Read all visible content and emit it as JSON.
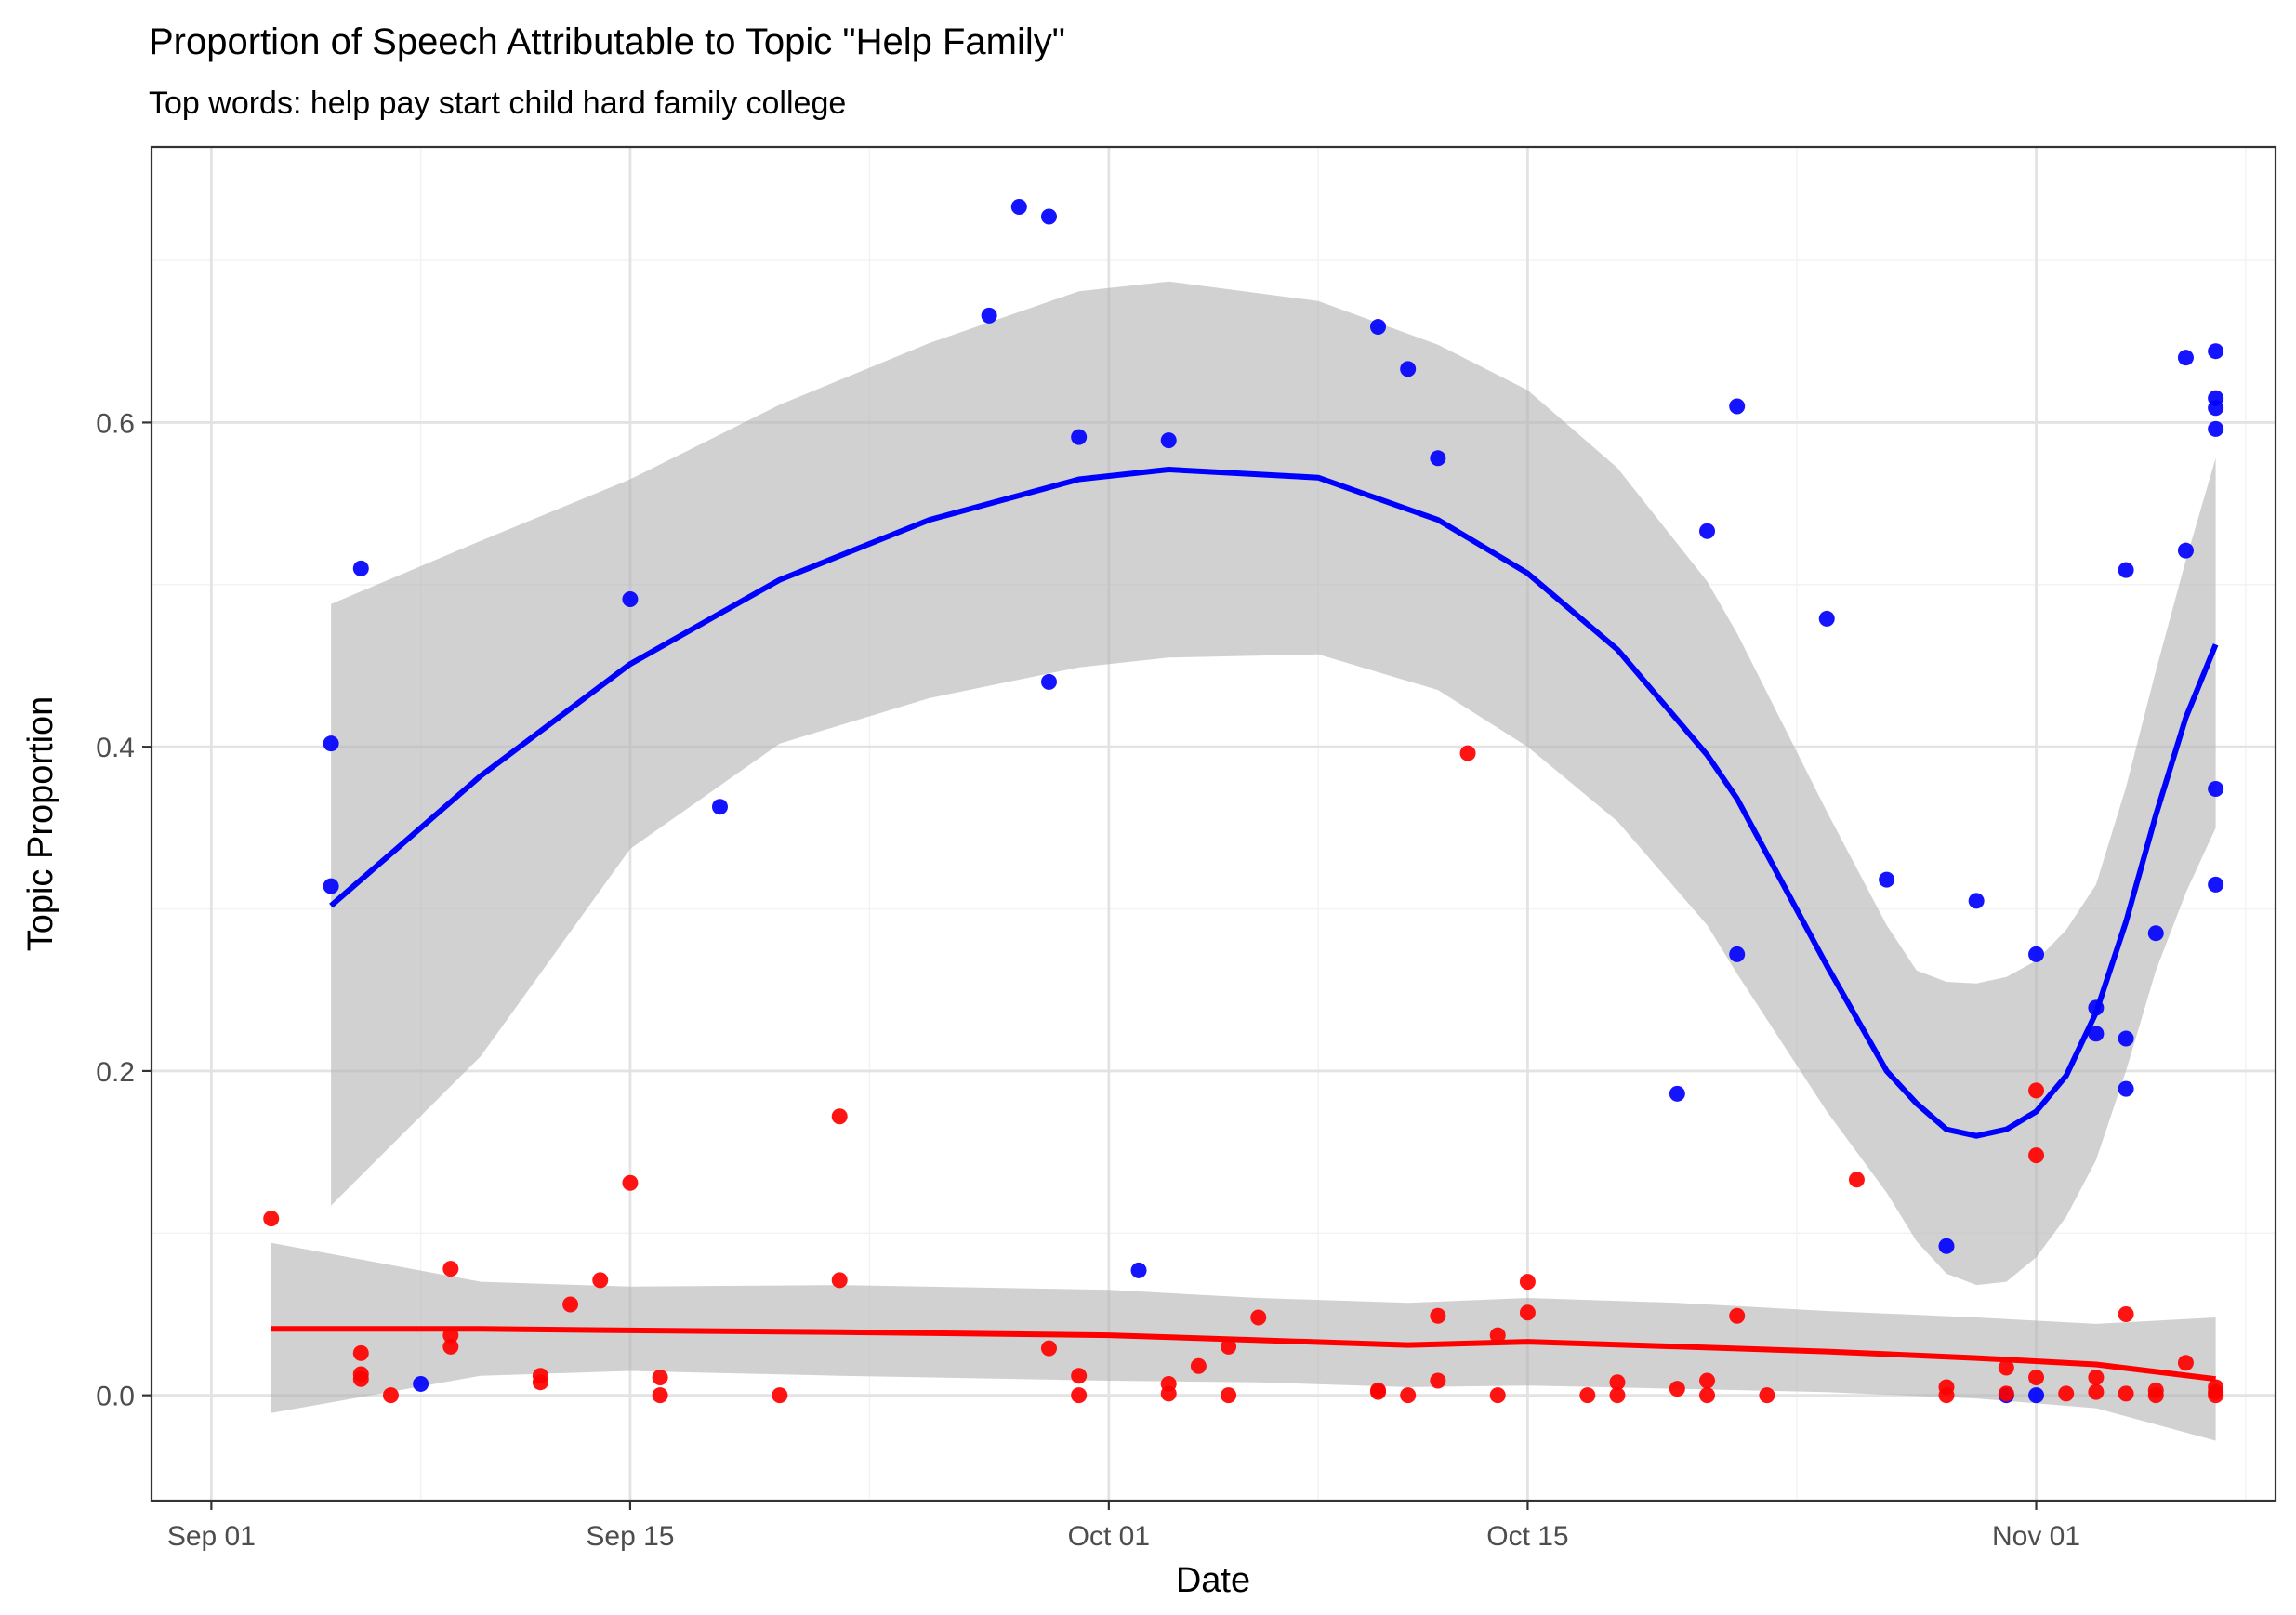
{
  "colors": {
    "series_blue": "#0000FF",
    "series_red": "#FF0000",
    "ribbon": "#B3B3B3",
    "grid_major": "#E3E3E3",
    "grid_minor": "#F2F2F2",
    "panel_border": "#333333"
  },
  "chart_data": {
    "type": "scatter",
    "title": "Proportion of Speech Attributable to Topic \"Help Family\"",
    "subtitle": "Top words: help pay start child hard family college",
    "xlabel": "Date",
    "ylabel": "Topic Proportion",
    "x_axis_type": "date",
    "xlim": [
      "2016-08-30",
      "2016-11-09"
    ],
    "ylim": [
      -0.065,
      0.77
    ],
    "x_ticks": [
      {
        "date": "2016-09-01",
        "label": "Sep 01"
      },
      {
        "date": "2016-09-15",
        "label": "Sep 15"
      },
      {
        "date": "2016-10-01",
        "label": "Oct 01"
      },
      {
        "date": "2016-10-15",
        "label": "Oct 15"
      },
      {
        "date": "2016-11-01",
        "label": "Nov 01"
      }
    ],
    "y_ticks": [
      {
        "value": 0.0,
        "label": "0.0"
      },
      {
        "value": 0.2,
        "label": "0.2"
      },
      {
        "value": 0.4,
        "label": "0.4"
      },
      {
        "value": 0.6,
        "label": "0.6"
      }
    ],
    "x_minor_ticks": [
      "2016-09-08",
      "2016-09-23",
      "2016-10-08",
      "2016-10-24",
      "2016-11-08"
    ],
    "y_minor_ticks": [
      0.1,
      0.3,
      0.5,
      0.7
    ],
    "grid": true,
    "legend": "none",
    "series": [
      {
        "color": "#0000FF",
        "points": [
          [
            "2016-09-05",
            0.402
          ],
          [
            "2016-09-05",
            0.314
          ],
          [
            "2016-09-06",
            0.51
          ],
          [
            "2016-09-08",
            0.007
          ],
          [
            "2016-09-15",
            0.491
          ],
          [
            "2016-09-18",
            0.363
          ],
          [
            "2016-09-27",
            0.666
          ],
          [
            "2016-09-28",
            0.733
          ],
          [
            "2016-09-29",
            0.727
          ],
          [
            "2016-09-29",
            0.44
          ],
          [
            "2016-09-30",
            0.591
          ],
          [
            "2016-10-02",
            0.077
          ],
          [
            "2016-10-03",
            0.589
          ],
          [
            "2016-10-10",
            0.659
          ],
          [
            "2016-10-11",
            0.633
          ],
          [
            "2016-10-12",
            0.578
          ],
          [
            "2016-10-20",
            0.186
          ],
          [
            "2016-10-21",
            0.533
          ],
          [
            "2016-10-22",
            0.61
          ],
          [
            "2016-10-22",
            0.272
          ],
          [
            "2016-10-25",
            0.479
          ],
          [
            "2016-10-27",
            0.318
          ],
          [
            "2016-10-29",
            0.092
          ],
          [
            "2016-10-30",
            0.305
          ],
          [
            "2016-10-31",
            0.0
          ],
          [
            "2016-11-01",
            0.272
          ],
          [
            "2016-11-01",
            0.0
          ],
          [
            "2016-11-03",
            0.239
          ],
          [
            "2016-11-03",
            0.223
          ],
          [
            "2016-11-04",
            0.509
          ],
          [
            "2016-11-04",
            0.22
          ],
          [
            "2016-11-04",
            0.189
          ],
          [
            "2016-11-05",
            0.285
          ],
          [
            "2016-11-06",
            0.64
          ],
          [
            "2016-11-06",
            0.521
          ],
          [
            "2016-11-07",
            0.644
          ],
          [
            "2016-11-07",
            0.615
          ],
          [
            "2016-11-07",
            0.609
          ],
          [
            "2016-11-07",
            0.596
          ],
          [
            "2016-11-07",
            0.374
          ],
          [
            "2016-11-07",
            0.315
          ]
        ],
        "smooth": [
          [
            "2016-09-05",
            0.302,
            0.117,
            0.488
          ],
          [
            "2016-09-10",
            0.382,
            0.209,
            0.527
          ],
          [
            "2016-09-15",
            0.451,
            0.337,
            0.565
          ],
          [
            "2016-09-20",
            0.503,
            0.402,
            0.611
          ],
          [
            "2016-09-25",
            0.54,
            0.43,
            0.649
          ],
          [
            "2016-09-30",
            0.565,
            0.449,
            0.681
          ],
          [
            "2016-10-03",
            0.571,
            0.455,
            0.687
          ],
          [
            "2016-10-08",
            0.566,
            0.457,
            0.675
          ],
          [
            "2016-10-12",
            0.54,
            0.435,
            0.648
          ],
          [
            "2016-10-15",
            0.507,
            0.4,
            0.62
          ],
          [
            "2016-10-18",
            0.46,
            0.354,
            0.572
          ],
          [
            "2016-10-21",
            0.395,
            0.29,
            0.502
          ],
          [
            "2016-10-22",
            0.368,
            0.26,
            0.47
          ],
          [
            "2016-10-25",
            0.265,
            0.175,
            0.36
          ],
          [
            "2016-10-27",
            0.2,
            0.125,
            0.29
          ],
          [
            "2016-10-28",
            0.18,
            0.095,
            0.262
          ],
          [
            "2016-10-29",
            0.164,
            0.075,
            0.255
          ],
          [
            "2016-10-30",
            0.16,
            0.068,
            0.254
          ],
          [
            "2016-10-31",
            0.164,
            0.07,
            0.258
          ],
          [
            "2016-11-01",
            0.175,
            0.085,
            0.268
          ],
          [
            "2016-11-02",
            0.197,
            0.11,
            0.287
          ],
          [
            "2016-11-03",
            0.236,
            0.145,
            0.315
          ],
          [
            "2016-11-04",
            0.292,
            0.2,
            0.375
          ],
          [
            "2016-11-05",
            0.358,
            0.262,
            0.447
          ],
          [
            "2016-11-06",
            0.418,
            0.31,
            0.515
          ],
          [
            "2016-11-07",
            0.463,
            0.35,
            0.578
          ]
        ]
      },
      {
        "color": "#FF0000",
        "points": [
          [
            "2016-09-03",
            0.109
          ],
          [
            "2016-09-06",
            0.026
          ],
          [
            "2016-09-06",
            0.013
          ],
          [
            "2016-09-06",
            0.01
          ],
          [
            "2016-09-07",
            0.0
          ],
          [
            "2016-09-09",
            0.078
          ],
          [
            "2016-09-09",
            0.037
          ],
          [
            "2016-09-09",
            0.03
          ],
          [
            "2016-09-12",
            0.012
          ],
          [
            "2016-09-12",
            0.008
          ],
          [
            "2016-09-13",
            0.056
          ],
          [
            "2016-09-14",
            0.071
          ],
          [
            "2016-09-15",
            0.131
          ],
          [
            "2016-09-16",
            0.011
          ],
          [
            "2016-09-16",
            0.0
          ],
          [
            "2016-09-20",
            0.0
          ],
          [
            "2016-09-22",
            0.172
          ],
          [
            "2016-09-22",
            0.071
          ],
          [
            "2016-09-29",
            0.029
          ],
          [
            "2016-09-30",
            0.012
          ],
          [
            "2016-09-30",
            0.0
          ],
          [
            "2016-10-03",
            0.007
          ],
          [
            "2016-10-03",
            0.001
          ],
          [
            "2016-10-04",
            0.018
          ],
          [
            "2016-10-05",
            0.03
          ],
          [
            "2016-10-05",
            0.0
          ],
          [
            "2016-10-06",
            0.048
          ],
          [
            "2016-10-10",
            0.003
          ],
          [
            "2016-10-10",
            0.002
          ],
          [
            "2016-10-11",
            0.0
          ],
          [
            "2016-10-12",
            0.049
          ],
          [
            "2016-10-12",
            0.009
          ],
          [
            "2016-10-13",
            0.396
          ],
          [
            "2016-10-14",
            0.037
          ],
          [
            "2016-10-14",
            0.0
          ],
          [
            "2016-10-15",
            0.07
          ],
          [
            "2016-10-15",
            0.051
          ],
          [
            "2016-10-17",
            0.0
          ],
          [
            "2016-10-18",
            0.008
          ],
          [
            "2016-10-18",
            0.0
          ],
          [
            "2016-10-20",
            0.004
          ],
          [
            "2016-10-21",
            0.009
          ],
          [
            "2016-10-21",
            0.0
          ],
          [
            "2016-10-22",
            0.049
          ],
          [
            "2016-10-23",
            0.0
          ],
          [
            "2016-10-26",
            0.133
          ],
          [
            "2016-10-29",
            0.005
          ],
          [
            "2016-10-29",
            0.0
          ],
          [
            "2016-10-31",
            0.017
          ],
          [
            "2016-10-31",
            0.001
          ],
          [
            "2016-11-01",
            0.188
          ],
          [
            "2016-11-01",
            0.148
          ],
          [
            "2016-11-01",
            0.011
          ],
          [
            "2016-11-02",
            0.001
          ],
          [
            "2016-11-03",
            0.011
          ],
          [
            "2016-11-03",
            0.002
          ],
          [
            "2016-11-04",
            0.05
          ],
          [
            "2016-11-04",
            0.001
          ],
          [
            "2016-11-05",
            0.003
          ],
          [
            "2016-11-05",
            0.0
          ],
          [
            "2016-11-06",
            0.02
          ],
          [
            "2016-11-07",
            0.005
          ],
          [
            "2016-11-07",
            0.002
          ],
          [
            "2016-11-07",
            0.0
          ]
        ],
        "smooth": [
          [
            "2016-09-03",
            0.041,
            -0.011,
            0.094
          ],
          [
            "2016-09-10",
            0.041,
            0.012,
            0.07
          ],
          [
            "2016-09-15",
            0.04,
            0.015,
            0.067
          ],
          [
            "2016-09-22",
            0.039,
            0.012,
            0.068
          ],
          [
            "2016-10-01",
            0.037,
            0.009,
            0.065
          ],
          [
            "2016-10-06",
            0.034,
            0.008,
            0.06
          ],
          [
            "2016-10-11",
            0.031,
            0.005,
            0.057
          ],
          [
            "2016-10-15",
            0.033,
            0.006,
            0.06
          ],
          [
            "2016-10-20",
            0.03,
            0.004,
            0.057
          ],
          [
            "2016-10-25",
            0.027,
            0.002,
            0.052
          ],
          [
            "2016-10-30",
            0.023,
            -0.002,
            0.048
          ],
          [
            "2016-11-03",
            0.019,
            -0.008,
            0.044
          ],
          [
            "2016-11-07",
            0.01,
            -0.028,
            0.048
          ]
        ]
      }
    ]
  }
}
